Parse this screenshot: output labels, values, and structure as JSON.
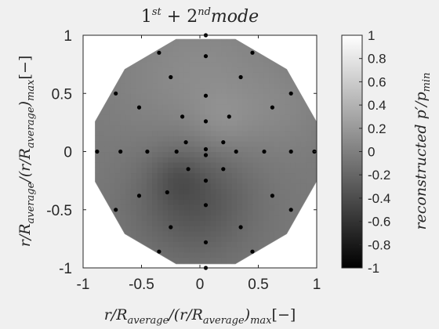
{
  "chart_data": {
    "type": "heatmap",
    "title": "1st + 2nd mode",
    "title_parts": [
      "1",
      "st",
      " + 2",
      "nd",
      "mode"
    ],
    "xlabel": "r/R_average/(r/R_average)_max[−]",
    "xlabel_parts": [
      "r/R",
      "average",
      "/(r/R",
      "average",
      ")",
      "max",
      "[−]"
    ],
    "ylabel": "r/R_average/(r/R_average)_max[−]",
    "ylabel_parts": [
      "r/R",
      "average",
      "/(r/R",
      "average",
      ")",
      "max",
      "[−]"
    ],
    "colorbar_label": "reconstructed p'/p_min",
    "colorbar_label_parts": [
      "reconstructed p",
      "′",
      "/p",
      "min"
    ],
    "xlim": [
      -1,
      1
    ],
    "ylim": [
      -1,
      1
    ],
    "xticks": [
      "-1",
      "-0.5",
      "0",
      "0.5",
      "1"
    ],
    "yticks": [
      "1",
      "0.5",
      "0",
      "-0.5",
      "-1"
    ],
    "colorbar_range": [
      -1,
      1
    ],
    "colorbar_ticks": [
      "1",
      "0.8",
      "0.6",
      "0.4",
      "0.2",
      "0",
      "-0.2",
      "-0.4",
      "-0.6",
      "-0.8",
      "-1"
    ],
    "colormap": "gray",
    "grid": false,
    "sensor_points": [
      {
        "x": 0.05,
        "y": 1.0
      },
      {
        "x": -0.35,
        "y": 0.85
      },
      {
        "x": 0.45,
        "y": 0.85
      },
      {
        "x": 0.05,
        "y": 0.82
      },
      {
        "x": -0.25,
        "y": 0.64
      },
      {
        "x": 0.35,
        "y": 0.64
      },
      {
        "x": -0.72,
        "y": 0.5
      },
      {
        "x": 0.78,
        "y": 0.5
      },
      {
        "x": 0.05,
        "y": 0.48
      },
      {
        "x": -0.52,
        "y": 0.38
      },
      {
        "x": 0.62,
        "y": 0.38
      },
      {
        "x": -0.15,
        "y": 0.3
      },
      {
        "x": 0.25,
        "y": 0.3
      },
      {
        "x": 0.05,
        "y": 0.26
      },
      {
        "x": -0.12,
        "y": 0.08
      },
      {
        "x": 0.2,
        "y": 0.08
      },
      {
        "x": 0.05,
        "y": 0.02
      },
      {
        "x": -0.88,
        "y": 0.0
      },
      {
        "x": -0.68,
        "y": 0.0
      },
      {
        "x": -0.45,
        "y": 0.0
      },
      {
        "x": -0.2,
        "y": 0.0
      },
      {
        "x": 0.31,
        "y": 0.0
      },
      {
        "x": 0.55,
        "y": 0.0
      },
      {
        "x": 0.78,
        "y": 0.0
      },
      {
        "x": 0.98,
        "y": 0.0
      },
      {
        "x": 0.05,
        "y": -0.03
      },
      {
        "x": -0.1,
        "y": -0.15
      },
      {
        "x": 0.2,
        "y": -0.15
      },
      {
        "x": 0.05,
        "y": -0.25
      },
      {
        "x": -0.52,
        "y": -0.38
      },
      {
        "x": 0.62,
        "y": -0.38
      },
      {
        "x": -0.28,
        "y": -0.35
      },
      {
        "x": 0.05,
        "y": -0.46
      },
      {
        "x": -0.72,
        "y": -0.5
      },
      {
        "x": 0.78,
        "y": -0.5
      },
      {
        "x": -0.25,
        "y": -0.65
      },
      {
        "x": 0.35,
        "y": -0.65
      },
      {
        "x": 0.05,
        "y": -0.78
      },
      {
        "x": -0.35,
        "y": -0.86
      },
      {
        "x": 0.45,
        "y": -0.86
      },
      {
        "x": 0.05,
        "y": -1.0
      }
    ],
    "field": {
      "background": -0.05,
      "bumps": [
        {
          "x": 0.0,
          "y": 0.6,
          "amp": 0.15,
          "sigma": 0.5
        },
        {
          "x": 0.2,
          "y": 0.25,
          "amp": 0.1,
          "sigma": 0.18
        },
        {
          "x": -0.05,
          "y": -0.4,
          "amp": -0.32,
          "sigma": 0.35
        },
        {
          "x": -0.2,
          "y": -0.22,
          "amp": -0.12,
          "sigma": 0.15
        },
        {
          "x": 0.7,
          "y": 0.35,
          "amp": 0.07,
          "sigma": 0.25
        }
      ]
    }
  }
}
